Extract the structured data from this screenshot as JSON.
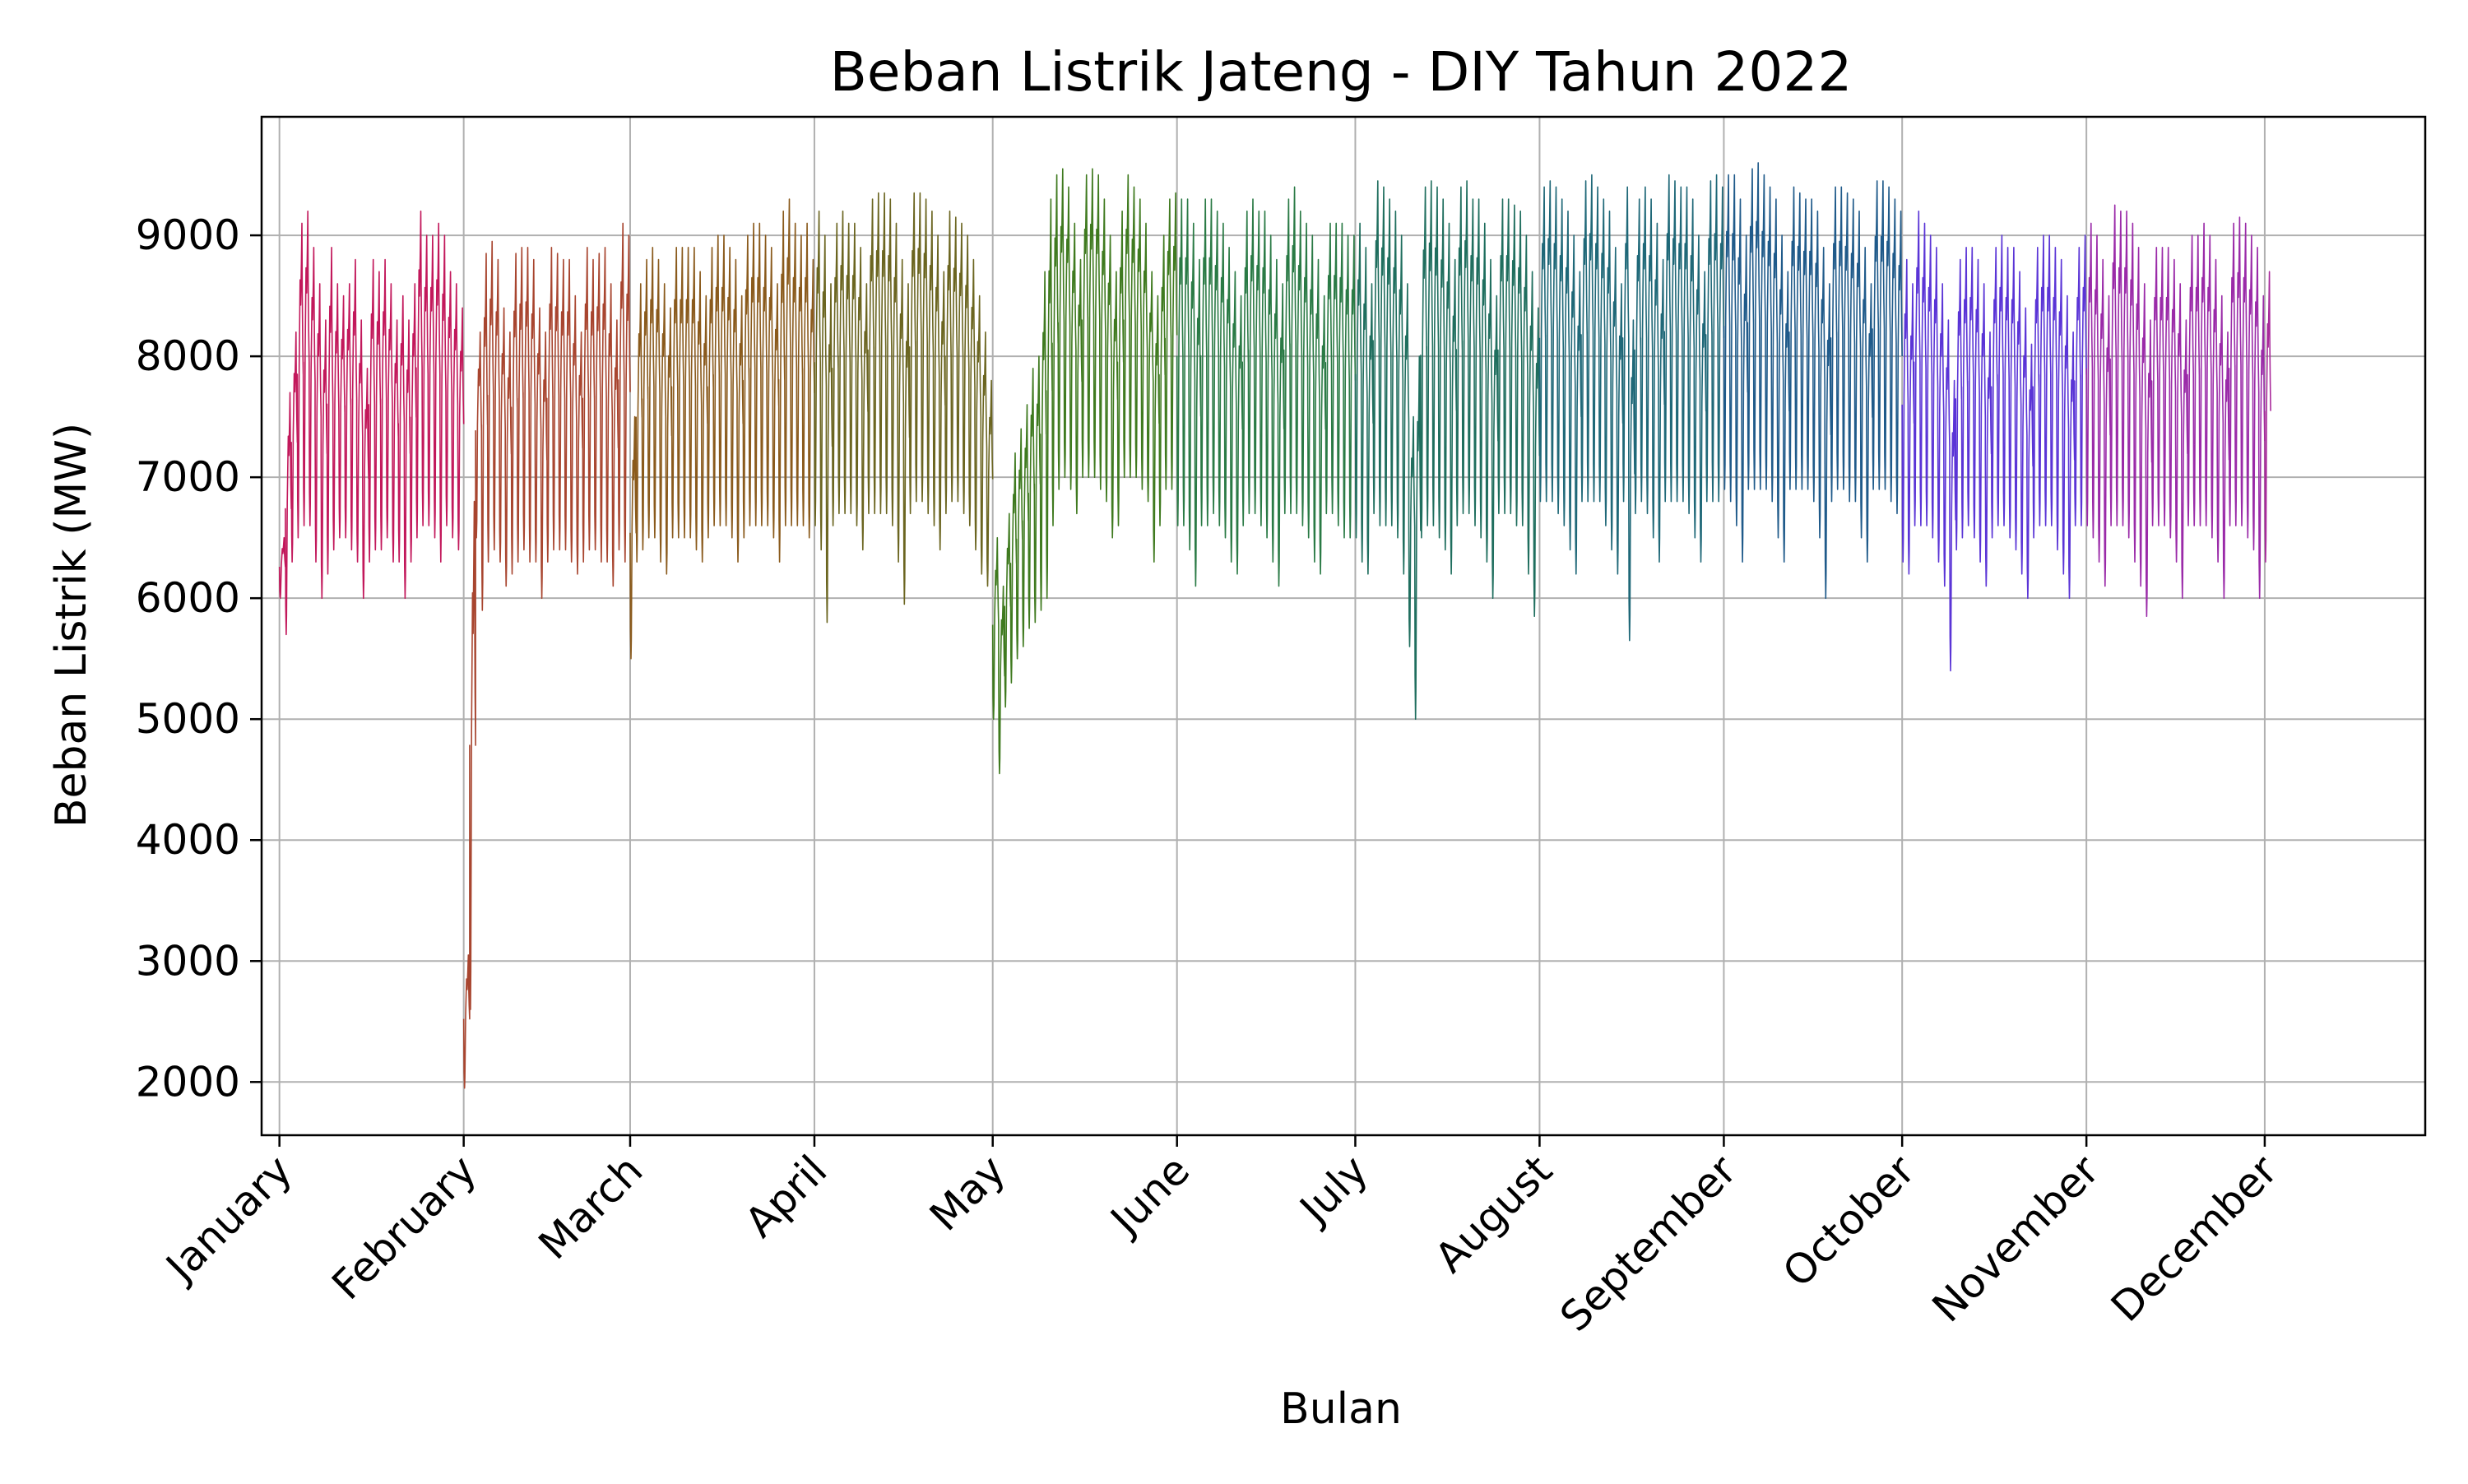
{
  "chart_data": {
    "type": "line",
    "title": "Beban Listrik Jateng - DIY Tahun 2022",
    "xlabel": "Bulan",
    "ylabel": "Beban Listrik (MW)",
    "ylim": [
      1560,
      9980
    ],
    "yticks": [
      2000,
      3000,
      4000,
      5000,
      6000,
      7000,
      8000,
      9000
    ],
    "grid": true,
    "legend": "none",
    "x_ticks": [
      {
        "label": "January",
        "date": "2022-01-01"
      },
      {
        "label": "February",
        "date": "2022-02-01"
      },
      {
        "label": "March",
        "date": "2022-03-01"
      },
      {
        "label": "April",
        "date": "2022-04-01"
      },
      {
        "label": "May",
        "date": "2022-05-01"
      },
      {
        "label": "June",
        "date": "2022-06-01"
      },
      {
        "label": "July",
        "date": "2022-07-01"
      },
      {
        "label": "August",
        "date": "2022-08-01"
      },
      {
        "label": "September",
        "date": "2022-09-01"
      },
      {
        "label": "October",
        "date": "2022-10-01"
      },
      {
        "label": "November",
        "date": "2022-11-01"
      },
      {
        "label": "December",
        "date": "2022-12-01"
      }
    ],
    "series": [
      {
        "color": "#c2185b",
        "start": "2022-01-01",
        "end": "2022-01-31",
        "daily_min": [
          6000,
          5700,
          6300,
          6500,
          6600,
          6600,
          6300,
          6000,
          6200,
          6400,
          6500,
          6500,
          6400,
          6300,
          6000,
          6300,
          6400,
          6400,
          6500,
          6300,
          6300,
          6000,
          6300,
          6500,
          6600,
          6600,
          6500,
          6300,
          6600,
          6500,
          6400
        ],
        "daily_max": [
          6500,
          7700,
          8200,
          9100,
          9200,
          8900,
          8600,
          8300,
          8900,
          8600,
          8500,
          8600,
          8800,
          8300,
          7900,
          8800,
          8700,
          8800,
          8600,
          8300,
          8500,
          8300,
          8600,
          9200,
          9000,
          9000,
          9100,
          9000,
          8700,
          8600,
          8400
        ]
      },
      {
        "color": "#a8452f",
        "start": "2022-02-01",
        "end": "2022-02-28",
        "daily_min": [
          1950,
          2600,
          6500,
          5900,
          6300,
          6400,
          6300,
          6100,
          6200,
          6300,
          6400,
          6300,
          6300,
          6000,
          6300,
          6400,
          6400,
          6400,
          6300,
          6200,
          6300,
          6400,
          6400,
          6300,
          6300,
          6100,
          6400,
          6300
        ],
        "daily_max": [
          3050,
          6800,
          8200,
          8850,
          8950,
          8800,
          8400,
          8200,
          8850,
          8900,
          8900,
          8800,
          8400,
          8200,
          8900,
          8850,
          8800,
          8800,
          8500,
          8200,
          8900,
          8800,
          8850,
          8900,
          8600,
          8300,
          9100,
          9000
        ]
      },
      {
        "color": "#8a5a1c",
        "start": "2022-03-01",
        "end": "2022-03-31",
        "daily_min": [
          5500,
          6300,
          6400,
          6500,
          6500,
          6300,
          6200,
          6500,
          6500,
          6500,
          6500,
          6400,
          6300,
          6500,
          6600,
          6600,
          6600,
          6500,
          6300,
          6500,
          6600,
          6600,
          6600,
          6600,
          6500,
          6300,
          6600,
          6600,
          6600,
          6600,
          6500
        ],
        "daily_max": [
          7500,
          8600,
          8800,
          8900,
          8800,
          8600,
          8400,
          8900,
          8900,
          8900,
          8900,
          8700,
          8500,
          8900,
          9000,
          9000,
          8900,
          8800,
          8500,
          9000,
          9100,
          9100,
          9000,
          8900,
          8600,
          9200,
          9300,
          9100,
          9000,
          9100,
          8800
        ]
      },
      {
        "color": "#6b6520",
        "start": "2022-04-01",
        "end": "2022-04-30",
        "daily_min": [
          6600,
          6400,
          5800,
          6600,
          6700,
          6700,
          6700,
          6600,
          6400,
          6700,
          6700,
          6700,
          6700,
          6600,
          6300,
          5950,
          6700,
          6800,
          6800,
          6700,
          6600,
          6400,
          6700,
          6800,
          6800,
          6700,
          6600,
          6400,
          6200,
          6100
        ],
        "daily_max": [
          9200,
          9000,
          8600,
          9100,
          9200,
          9100,
          9100,
          8900,
          8600,
          9300,
          9350,
          9350,
          9300,
          9100,
          8800,
          8600,
          9350,
          9350,
          9300,
          9200,
          9000,
          8700,
          9200,
          9150,
          9100,
          9000,
          8800,
          8500,
          8200,
          7800
        ]
      },
      {
        "color": "#3f7a1f",
        "start": "2022-05-01",
        "end": "2022-05-31",
        "daily_min": [
          5000,
          4550,
          5100,
          5300,
          5500,
          5600,
          5750,
          5800,
          5900,
          6000,
          6600,
          6900,
          7000,
          6900,
          6700,
          7000,
          7000,
          7000,
          6900,
          6800,
          6500,
          6600,
          7000,
          7000,
          7000,
          6900,
          6800,
          6300,
          6600,
          6900,
          6900
        ],
        "daily_max": [
          6500,
          6100,
          6700,
          7200,
          7400,
          7600,
          7900,
          8000,
          8700,
          9300,
          9500,
          9550,
          9400,
          9100,
          8800,
          9500,
          9550,
          9500,
          9300,
          9000,
          8700,
          9200,
          9500,
          9400,
          9300,
          9100,
          8700,
          8500,
          9000,
          9300,
          9350
        ]
      },
      {
        "color": "#2a7a45",
        "start": "2022-06-01",
        "end": "2022-06-30",
        "daily_min": [
          6600,
          6600,
          6400,
          6100,
          6600,
          6600,
          6700,
          6600,
          6500,
          6300,
          6200,
          6600,
          6700,
          6700,
          6600,
          6500,
          6300,
          6100,
          6700,
          6700,
          6700,
          6600,
          6500,
          6300,
          6200,
          6700,
          6700,
          6600,
          6500,
          6500
        ],
        "daily_max": [
          9300,
          9300,
          9100,
          8800,
          9300,
          9300,
          9200,
          9100,
          8900,
          8700,
          8500,
          9200,
          9300,
          9200,
          9200,
          9000,
          8800,
          8600,
          9300,
          9400,
          9200,
          9100,
          9000,
          8800,
          8500,
          9100,
          9100,
          9100,
          9000,
          9000
        ]
      },
      {
        "color": "#1f6e5e",
        "start": "2022-07-01",
        "end": "2022-07-31",
        "daily_min": [
          6500,
          6300,
          6200,
          6700,
          6600,
          6600,
          6600,
          6500,
          6200,
          5600,
          5000,
          6500,
          6600,
          6600,
          6500,
          6400,
          6200,
          6600,
          6700,
          6700,
          6600,
          6500,
          6300,
          6000,
          6700,
          6700,
          6700,
          6600,
          6600,
          6200,
          5850
        ],
        "daily_max": [
          9100,
          8900,
          8600,
          9450,
          9400,
          9300,
          9200,
          9000,
          8600,
          7500,
          8000,
          9400,
          9450,
          9400,
          9300,
          9100,
          8800,
          9400,
          9450,
          9300,
          9300,
          9100,
          8800,
          8500,
          9300,
          9300,
          9250,
          9200,
          9000,
          8700,
          8400
        ]
      },
      {
        "color": "#1f6878",
        "start": "2022-08-01",
        "end": "2022-08-31",
        "daily_min": [
          6800,
          6800,
          6800,
          6700,
          6600,
          6400,
          6200,
          6800,
          6800,
          6800,
          6800,
          6600,
          6400,
          6200,
          6800,
          5650,
          6700,
          6800,
          6700,
          6500,
          6300,
          6800,
          6800,
          6800,
          6800,
          6700,
          6500,
          6300,
          6800,
          6800,
          6800
        ],
        "daily_max": [
          9400,
          9450,
          9400,
          9300,
          9200,
          9000,
          8700,
          9450,
          9500,
          9400,
          9300,
          9200,
          8900,
          8600,
          9400,
          8300,
          9300,
          9400,
          9300,
          9100,
          8800,
          9500,
          9450,
          9400,
          9400,
          9300,
          9000,
          8700,
          9450,
          9500,
          9400
        ]
      },
      {
        "color": "#1f5a8a",
        "start": "2022-09-01",
        "end": "2022-09-30",
        "daily_min": [
          6900,
          6800,
          6600,
          6300,
          6900,
          6900,
          6900,
          6900,
          6800,
          6500,
          6300,
          6900,
          6900,
          6900,
          6900,
          6800,
          6500,
          6000,
          6800,
          6900,
          6900,
          6800,
          6800,
          6500,
          6300,
          6900,
          6900,
          6900,
          6800,
          6700
        ],
        "daily_max": [
          9500,
          9500,
          9300,
          9000,
          9550,
          9600,
          9500,
          9400,
          9300,
          9000,
          8700,
          9400,
          9350,
          9300,
          9300,
          9200,
          8900,
          8600,
          9400,
          9400,
          9350,
          9300,
          9200,
          8900,
          8600,
          9450,
          9450,
          9400,
          9300,
          9200
        ]
      },
      {
        "color": "#5a34d6",
        "start": "2022-10-01",
        "end": "2022-10-31",
        "daily_min": [
          6300,
          6200,
          6600,
          6600,
          6600,
          6500,
          6300,
          6100,
          5400,
          6400,
          6500,
          6600,
          6500,
          6300,
          6100,
          6500,
          6600,
          6600,
          6500,
          6400,
          6200,
          6000,
          6500,
          6600,
          6600,
          6600,
          6400,
          6200,
          6000,
          6600,
          6600
        ],
        "daily_max": [
          8800,
          8600,
          9200,
          9100,
          9000,
          8900,
          8600,
          8300,
          7800,
          8800,
          8900,
          8900,
          8800,
          8600,
          8200,
          8900,
          9000,
          8900,
          8900,
          8700,
          8400,
          8100,
          8900,
          9000,
          9000,
          8900,
          8800,
          8500,
          8200,
          8900,
          9000
        ]
      },
      {
        "color": "#9a2aa8",
        "start": "2022-11-01",
        "end": "2022-11-30",
        "daily_min": [
          6600,
          6500,
          6300,
          6100,
          6600,
          6600,
          6600,
          6500,
          6300,
          6100,
          5850,
          6600,
          6600,
          6600,
          6500,
          6300,
          6000,
          6600,
          6600,
          6600,
          6600,
          6500,
          6300,
          6000,
          6600,
          6600,
          6600,
          6500,
          6400,
          6000
        ],
        "daily_max": [
          9100,
          9000,
          8800,
          8500,
          9250,
          9200,
          9200,
          9100,
          8900,
          8600,
          8300,
          8900,
          8900,
          8900,
          8800,
          8600,
          8300,
          9000,
          9000,
          9100,
          9000,
          8800,
          8500,
          8200,
          9100,
          9150,
          9100,
          9000,
          8900,
          8500
        ]
      },
      {
        "color": "#a8299a",
        "start": "2022-12-01",
        "end": "2022-12-01",
        "daily_min": [
          6300
        ],
        "daily_max": [
          8700
        ]
      }
    ]
  }
}
